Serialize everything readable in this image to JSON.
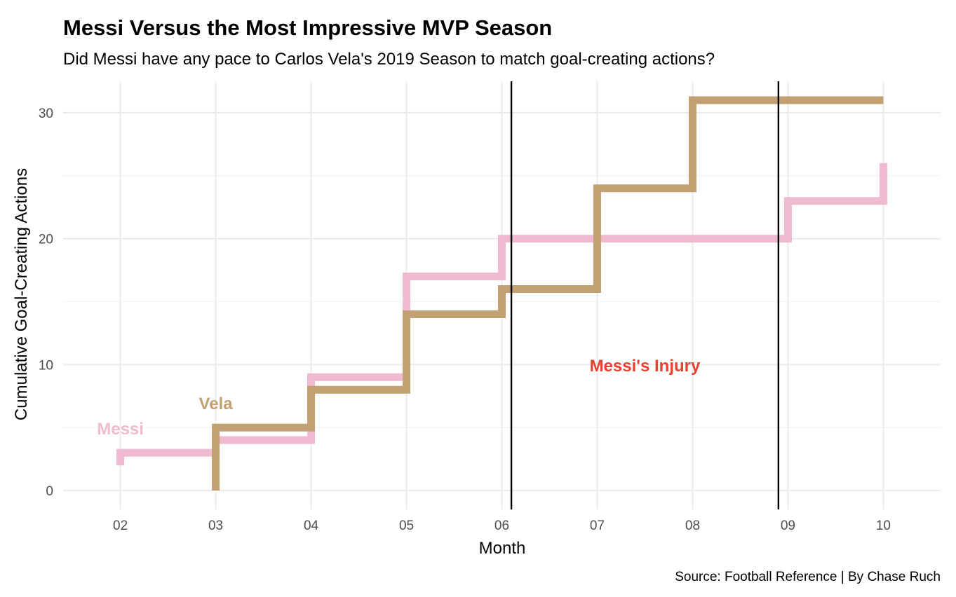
{
  "chart_data": {
    "type": "line",
    "step": true,
    "title": "Messi Versus the Most Impressive MVP Season",
    "subtitle": "Did Messi have any pace to Carlos Vela's 2019 Season to match goal-creating actions?",
    "xlabel": "Month",
    "ylabel": "Cumulative Goal-Creating Actions",
    "caption": "Source: Football Reference | By Chase Ruch",
    "xlim": [
      1.4,
      10.6
    ],
    "ylim": [
      -1.5,
      32.5
    ],
    "x_ticks": [
      {
        "value": 2,
        "label": "02"
      },
      {
        "value": 3,
        "label": "03"
      },
      {
        "value": 4,
        "label": "04"
      },
      {
        "value": 5,
        "label": "05"
      },
      {
        "value": 6,
        "label": "06"
      },
      {
        "value": 7,
        "label": "07"
      },
      {
        "value": 8,
        "label": "08"
      },
      {
        "value": 9,
        "label": "09"
      },
      {
        "value": 10,
        "label": "10"
      }
    ],
    "y_ticks": [
      0,
      10,
      20,
      30
    ],
    "y_minor_ticks": [
      5,
      15,
      25
    ],
    "grid": true,
    "legend": "none",
    "series": [
      {
        "name": "Messi",
        "color": "#f0bbd0",
        "x": [
          2,
          2,
          3,
          3,
          4,
          4,
          5,
          5,
          6,
          6,
          9,
          9,
          10,
          10
        ],
        "y": [
          2,
          3,
          3,
          4,
          4,
          9,
          9,
          17,
          17,
          20,
          20,
          23,
          23,
          26
        ]
      },
      {
        "name": "Vela",
        "color": "#c2a072",
        "x": [
          3,
          3,
          4,
          4,
          5,
          5,
          6,
          6,
          7,
          7,
          8,
          8,
          10
        ],
        "y": [
          0,
          5,
          5,
          8,
          8,
          14,
          14,
          16,
          16,
          24,
          24,
          31,
          31
        ]
      }
    ],
    "vlines": [
      {
        "x": 6.1,
        "color": "#000000"
      },
      {
        "x": 8.9,
        "color": "#000000"
      }
    ],
    "annotations": [
      {
        "text": "Messi",
        "x": 2.0,
        "y": 4.9,
        "color": "#f0bbd0"
      },
      {
        "text": "Vela",
        "x": 3.0,
        "y": 6.9,
        "color": "#c2a072"
      },
      {
        "text": "Messi's Injury",
        "x": 7.5,
        "y": 9.9,
        "color": "#e8412f"
      }
    ]
  }
}
